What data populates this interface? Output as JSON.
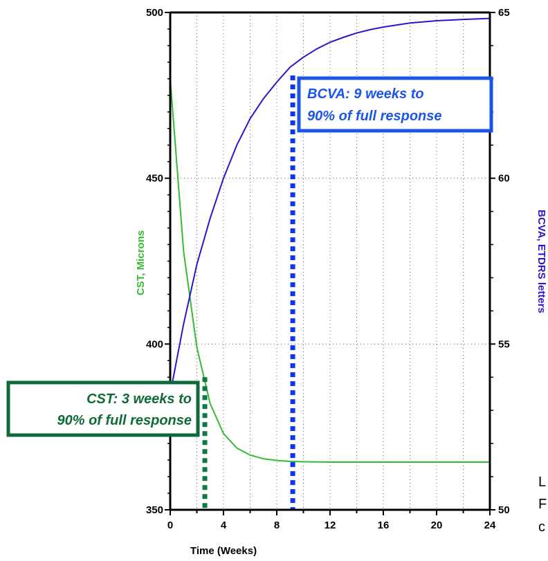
{
  "colors": {
    "cst_line": "#33bb33",
    "bcva_line": "#3311cc",
    "cst_marker": "#117744",
    "bcva_marker": "#1133ee",
    "cst_box": "#0f6a3a",
    "bcva_box": "#1a55e8",
    "grid": "#666666"
  },
  "chart_data": {
    "type": "line",
    "xlabel": "Time (Weeks)",
    "ylabel_left": "CST, Microns",
    "ylabel_right": "BCVA, ETDRS letters",
    "xlim": [
      0,
      24
    ],
    "ylim_left": [
      350,
      500
    ],
    "ylim_right": [
      50,
      65
    ],
    "x_ticks": [
      0,
      4,
      8,
      12,
      16,
      20,
      24
    ],
    "y_ticks_left": [
      350,
      400,
      450,
      500
    ],
    "y_ticks_right": [
      50,
      55,
      60,
      65
    ],
    "grid": "dotted",
    "series": [
      {
        "name": "CST, Microns",
        "axis": "left",
        "x": [
          0,
          1,
          2,
          3,
          4,
          5,
          6,
          7,
          8,
          9,
          10,
          11,
          12,
          14,
          16,
          18,
          20,
          22,
          24
        ],
        "y": [
          480,
          428,
          399,
          382,
          373,
          368.6,
          366.5,
          365.4,
          364.9,
          364.6,
          364.5,
          364.45,
          364.4,
          364.4,
          364.4,
          364.4,
          364.4,
          364.4,
          364.4
        ]
      },
      {
        "name": "BCVA, ETDRS letters",
        "axis": "right",
        "x": [
          0,
          1,
          2,
          3,
          4,
          5,
          6,
          7,
          8,
          9,
          10,
          11,
          12,
          13,
          14,
          15,
          16,
          18,
          20,
          22,
          24
        ],
        "y": [
          53.5,
          55.6,
          57.4,
          58.8,
          60.0,
          61.0,
          61.8,
          62.4,
          62.9,
          63.35,
          63.65,
          63.9,
          64.1,
          64.25,
          64.38,
          64.48,
          64.56,
          64.68,
          64.75,
          64.79,
          64.82
        ]
      }
    ],
    "markers": [
      {
        "name": "CST 90% response",
        "x": 2.6,
        "y_from": 350,
        "y_to": 390,
        "axis": "left",
        "color_key": "cst_marker"
      },
      {
        "name": "BCVA 90% response",
        "x": 9.2,
        "y_from": 350,
        "y_to": 481,
        "axis": "left",
        "color_key": "bcva_marker"
      }
    ],
    "annotations": {
      "cst": [
        "CST: 3 weeks to",
        "90% of full response"
      ],
      "bcva": [
        "BCVA: 9 weeks to",
        "90% of full response"
      ]
    }
  },
  "edge_text": [
    "L",
    "F",
    "c"
  ]
}
